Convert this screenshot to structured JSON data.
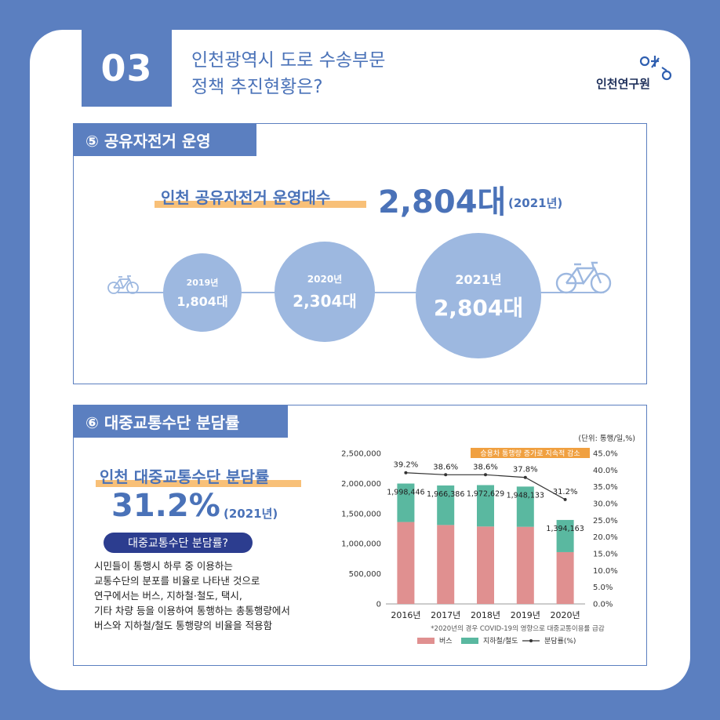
{
  "header": {
    "number": "03",
    "title_line1": "인천광역시 도로 수송부문",
    "title_line2": "정책 추진현황은?",
    "logo_text": "인천연구원"
  },
  "section5": {
    "tab": "⑤ 공유자전거 운영",
    "headline_label": "인천 공유자전거 운영대수",
    "headline_value": "2,804대",
    "headline_year": "(2021년)",
    "circles": [
      {
        "year": "2019년",
        "value": "1,804대"
      },
      {
        "year": "2020년",
        "value": "2,304대"
      },
      {
        "year": "2021년",
        "value": "2,804대"
      }
    ]
  },
  "section6": {
    "tab": "⑥ 대중교통수단 분담률",
    "headline_label": "인천 대중교통수단 분담률",
    "headline_value": "31.2%",
    "headline_year": "(2021년)",
    "pill": "대중교통수단 분담률?",
    "desc_lines": [
      "시민들이 통행시 하루 중 이용하는",
      "교통수단의 분포를 비율로 나타낸 것으로",
      "연구에서는 버스, 지하철·철도, 택시,",
      "기타 차량 등을 이용하여 통행하는 총통행량에서",
      "버스와 지하철/철도 통행량의 비율을 적용함"
    ]
  },
  "chart_data": {
    "type": "bar",
    "unit_note": "(단위: 통행/일,%)",
    "annotation": "승용차 통행량 증가로 지속적 감소",
    "footnote": "*2020년의 경우 COVID-19의 영향으로 대중교통이용률 급감",
    "categories": [
      "2016년",
      "2017년",
      "2018년",
      "2019년",
      "2020년"
    ],
    "series": [
      {
        "name": "버스",
        "type": "bar",
        "stack": "a",
        "color": "#e09090",
        "values": [
          1360000,
          1310000,
          1285000,
          1280000,
          860000
        ]
      },
      {
        "name": "지하철/철도",
        "type": "bar",
        "stack": "a",
        "color": "#5ab8a0",
        "values": [
          638446,
          656386,
          687629,
          668133,
          534163
        ]
      },
      {
        "name": "분담률(%)",
        "type": "line",
        "axis": "right",
        "color": "#333333",
        "values": [
          39.2,
          38.6,
          38.6,
          37.8,
          31.2
        ]
      }
    ],
    "bar_totals": [
      "1,998,446",
      "1,966,386",
      "1,972,629",
      "1,948,133",
      "1,394,163"
    ],
    "line_labels": [
      "39.2%",
      "38.6%",
      "38.6%",
      "37.8%",
      "31.2%"
    ],
    "left_axis": {
      "ylim": [
        0,
        2500000
      ],
      "ticks": [
        0,
        500000,
        1000000,
        1500000,
        2000000,
        2500000
      ],
      "tick_labels": [
        "0",
        "500,000",
        "1,000,000",
        "1,500,000",
        "2,000,000",
        "2,500,000"
      ]
    },
    "right_axis": {
      "ylim": [
        0,
        45
      ],
      "ticks": [
        0,
        5,
        10,
        15,
        20,
        25,
        30,
        35,
        40,
        45
      ],
      "tick_labels": [
        "0.0%",
        "5.0%",
        "10.0%",
        "15.0%",
        "20.0%",
        "25.0%",
        "30.0%",
        "35.0%",
        "40.0%",
        "45.0%"
      ]
    },
    "legend": "bottom"
  }
}
